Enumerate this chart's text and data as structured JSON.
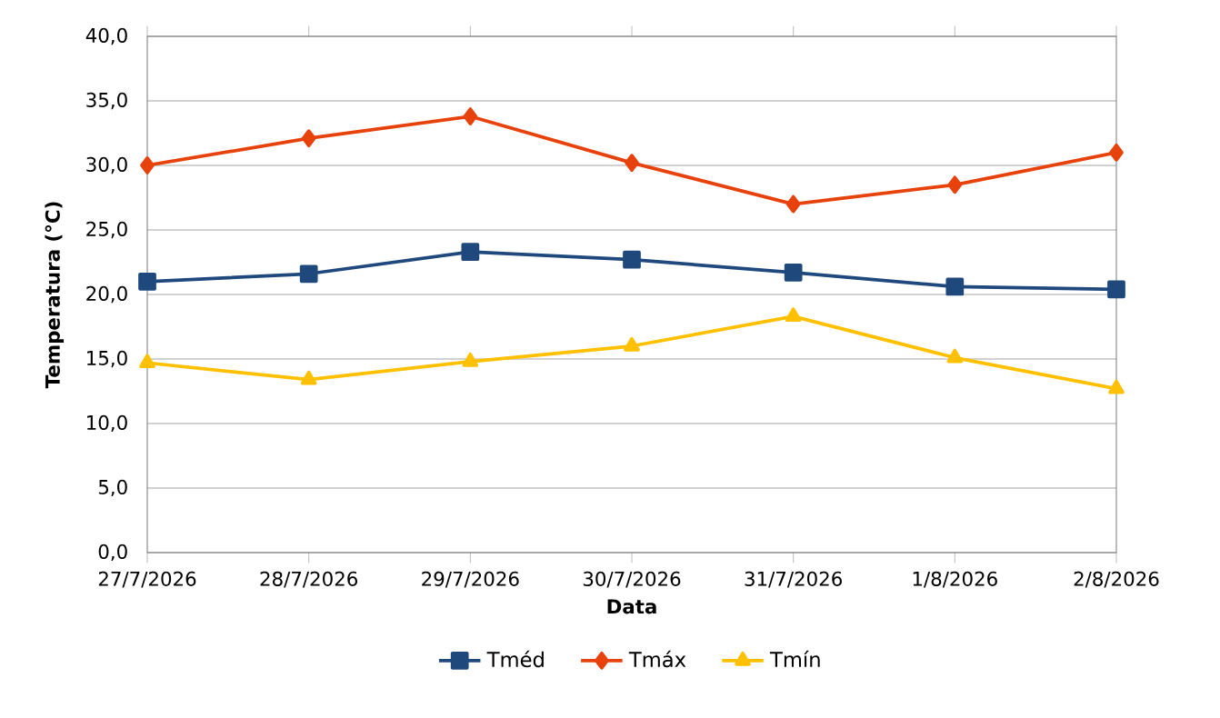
{
  "chart_data": {
    "type": "line",
    "xlabel": "Data",
    "ylabel": "Temperatura (°C)",
    "categories": [
      "27/7/2026",
      "28/7/2026",
      "29/7/2026",
      "30/7/2026",
      "31/7/2026",
      "1/8/2026",
      "2/8/2026"
    ],
    "series": [
      {
        "name": "Tméd",
        "color": "#1f497d",
        "marker": "square",
        "values": [
          21.0,
          21.6,
          23.3,
          22.7,
          21.7,
          20.6,
          20.4
        ]
      },
      {
        "name": "Tmáx",
        "color": "#e8420c",
        "marker": "diamond",
        "values": [
          30.0,
          32.1,
          33.8,
          30.2,
          27.0,
          28.5,
          31.0
        ]
      },
      {
        "name": "Tmín",
        "color": "#ffc000",
        "marker": "triangle",
        "values": [
          14.7,
          13.4,
          14.8,
          16.0,
          18.3,
          15.1,
          12.7
        ]
      }
    ],
    "ylim": [
      0,
      40
    ],
    "yticks": [
      {
        "value": 0,
        "label": "0,0"
      },
      {
        "value": 5,
        "label": "5,0"
      },
      {
        "value": 10,
        "label": "10,0"
      },
      {
        "value": 15,
        "label": "15,0"
      },
      {
        "value": 20,
        "label": "20,0"
      },
      {
        "value": 25,
        "label": "25,0"
      },
      {
        "value": 30,
        "label": "30,0"
      },
      {
        "value": 35,
        "label": "35,0"
      },
      {
        "value": 40,
        "label": "40,0"
      }
    ],
    "grid": "y",
    "legend": "bottom",
    "line_style": "solid"
  }
}
